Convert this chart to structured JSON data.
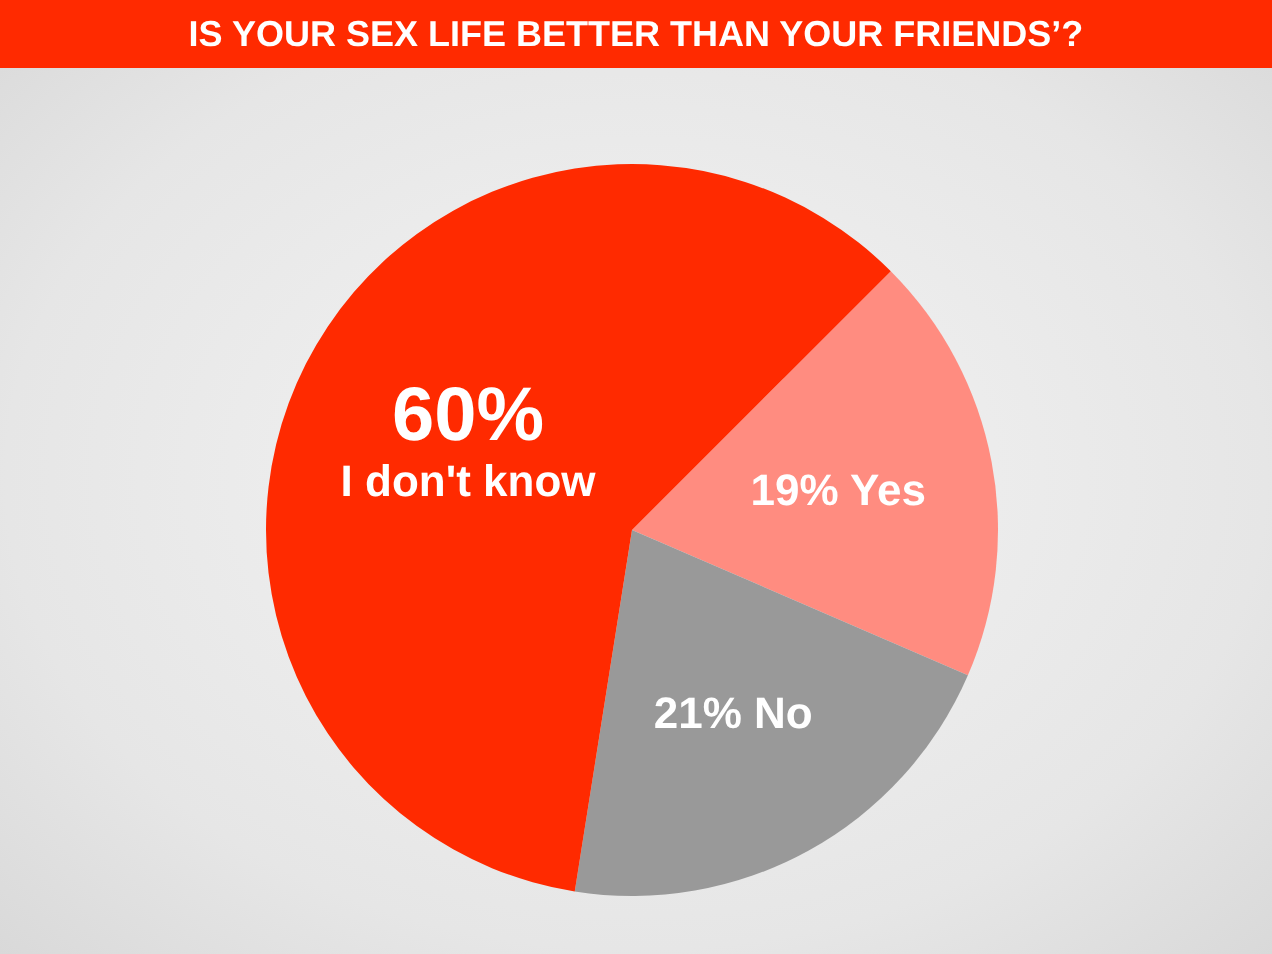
{
  "chart_data": {
    "type": "pie",
    "title": "IS YOUR SEX LIFE BETTER THAN YOUR FRIENDS’?",
    "categories": [
      "Yes",
      "No",
      "I don't know"
    ],
    "values": [
      19,
      21,
      60
    ],
    "colors": [
      "#ff8c80",
      "#999999",
      "#ff2a00"
    ],
    "value_labels": [
      "19%",
      "21%",
      "60%"
    ]
  }
}
